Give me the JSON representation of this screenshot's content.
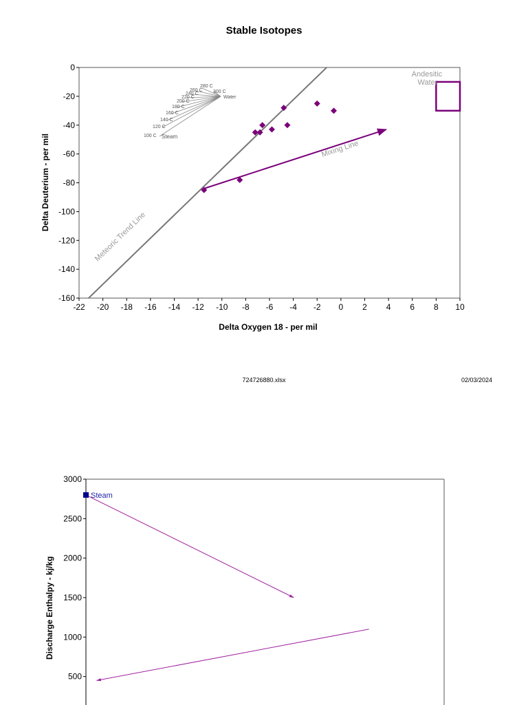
{
  "chart_data": [
    {
      "type": "scatter",
      "title": "Stable Isotopes",
      "xlabel": "Delta Oxygen 18 - per mil",
      "ylabel": "Delta Deuterium - per mil",
      "xlim": [
        -22,
        10
      ],
      "ylim": [
        -160,
        0
      ],
      "xticks": [
        -22,
        -20,
        -18,
        -16,
        -14,
        -12,
        -10,
        -8,
        -6,
        -4,
        -2,
        0,
        2,
        4,
        6,
        8,
        10
      ],
      "yticks": [
        0,
        -20,
        -40,
        -60,
        -80,
        -100,
        -120,
        -140,
        -160
      ],
      "points": [
        {
          "x": -11.5,
          "y": -85
        },
        {
          "x": -8.5,
          "y": -78
        },
        {
          "x": -7.2,
          "y": -45
        },
        {
          "x": -6.8,
          "y": -45
        },
        {
          "x": -6.6,
          "y": -40
        },
        {
          "x": -5.8,
          "y": -43
        },
        {
          "x": -4.8,
          "y": -28
        },
        {
          "x": -4.5,
          "y": -40
        },
        {
          "x": -2.0,
          "y": -25
        },
        {
          "x": -0.6,
          "y": -30
        }
      ],
      "meteoric_line": {
        "label": "Meteoric Trend Line",
        "x0": -21.2,
        "y0": -160,
        "x1": -1.2,
        "y1": 0
      },
      "mixing_line": {
        "label": "Mixing Line",
        "x0": -11.5,
        "y0": -84,
        "x1": 3.8,
        "y1": -43
      },
      "andesitic_water": {
        "label_line1": "Andesitic",
        "label_line2": "Water",
        "x0": 8,
        "x1": 10,
        "y0": -30,
        "y1": -10
      },
      "steam_fan": {
        "water_label": "Water",
        "steam_label": "Steam",
        "labels": [
          "280 C",
          "260 C",
          "240 C",
          "220 C",
          "200 C",
          "180 C",
          "160 C",
          "140 C",
          "120 C",
          "100 C",
          "300 C"
        ]
      },
      "footer_file": "724726880.xlsx",
      "footer_date": "02/03/2024"
    },
    {
      "type": "scatter",
      "title": "",
      "xlabel": "",
      "ylabel": "Discharge Enthalpy - kj/kg",
      "ylim": [
        0,
        3000
      ],
      "yticks": [
        3000,
        2500,
        2000,
        1500,
        1000,
        500
      ],
      "steam_point": {
        "label": "Steam",
        "y": 2800
      },
      "arrows": [
        {
          "from_y": 2800,
          "to_y": 1500,
          "from_x_frac": 0.0,
          "to_x_frac": 0.58
        },
        {
          "from_y": 1100,
          "to_y": 450,
          "from_x_frac": 0.79,
          "to_x_frac": 0.03
        }
      ]
    }
  ]
}
